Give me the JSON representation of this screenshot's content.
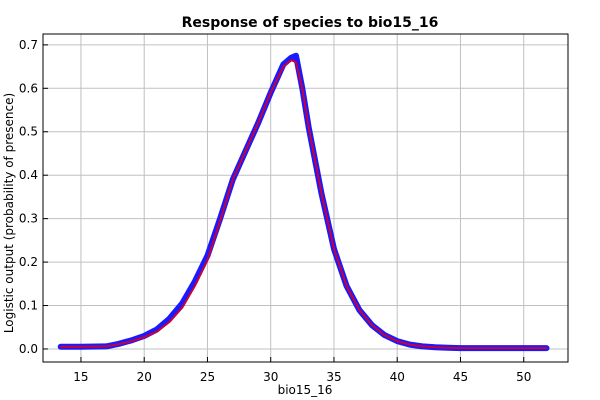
{
  "chart_data": {
    "type": "line",
    "title": "Response of species to bio15_16",
    "xlabel": "bio15_16",
    "ylabel": "Logistic output (probability of presence)",
    "xlim": [
      12,
      53.5
    ],
    "ylim": [
      -0.03,
      0.725
    ],
    "xticks": [
      15,
      20,
      25,
      30,
      35,
      40,
      45,
      50
    ],
    "yticks": [
      0.0,
      0.1,
      0.2,
      0.3,
      0.4,
      0.5,
      0.6,
      0.7
    ],
    "ytick_labels": [
      "0.0",
      "0.1",
      "0.2",
      "0.3",
      "0.4",
      "0.5",
      "0.6",
      "0.7"
    ],
    "grid": true,
    "series": [
      {
        "color": "#1a1aff",
        "role": "variability band",
        "x": [
          13.4,
          15,
          17,
          18,
          19,
          20,
          21,
          22,
          23,
          24,
          25,
          26,
          27,
          28,
          29,
          30,
          31,
          31.6,
          32,
          32.5,
          33,
          34,
          35,
          36,
          37,
          38,
          39,
          40,
          41,
          42,
          43,
          44,
          45,
          47,
          50,
          51.8
        ],
        "values": [
          0.005,
          0.005,
          0.006,
          0.012,
          0.02,
          0.03,
          0.045,
          0.07,
          0.105,
          0.155,
          0.215,
          0.3,
          0.39,
          0.455,
          0.52,
          0.59,
          0.655,
          0.67,
          0.675,
          0.6,
          0.51,
          0.36,
          0.23,
          0.145,
          0.09,
          0.055,
          0.032,
          0.018,
          0.01,
          0.006,
          0.004,
          0.003,
          0.002,
          0.002,
          0.002,
          0.002
        ]
      },
      {
        "color": "#cc0033",
        "role": "mean response",
        "x": [
          13.4,
          15,
          17,
          18,
          19,
          20,
          21,
          22,
          23,
          24,
          25,
          26,
          27,
          28,
          29,
          30,
          31,
          31.6,
          32,
          32.5,
          33,
          34,
          35,
          36,
          37,
          38,
          39,
          40,
          41,
          42,
          43,
          44,
          45,
          47,
          50,
          51.8
        ],
        "values": [
          0.005,
          0.005,
          0.006,
          0.011,
          0.018,
          0.027,
          0.04,
          0.062,
          0.095,
          0.145,
          0.205,
          0.295,
          0.39,
          0.455,
          0.52,
          0.59,
          0.65,
          0.665,
          0.66,
          0.6,
          0.51,
          0.36,
          0.23,
          0.145,
          0.09,
          0.055,
          0.032,
          0.018,
          0.01,
          0.006,
          0.004,
          0.003,
          0.002,
          0.002,
          0.002,
          0.002
        ]
      }
    ]
  }
}
